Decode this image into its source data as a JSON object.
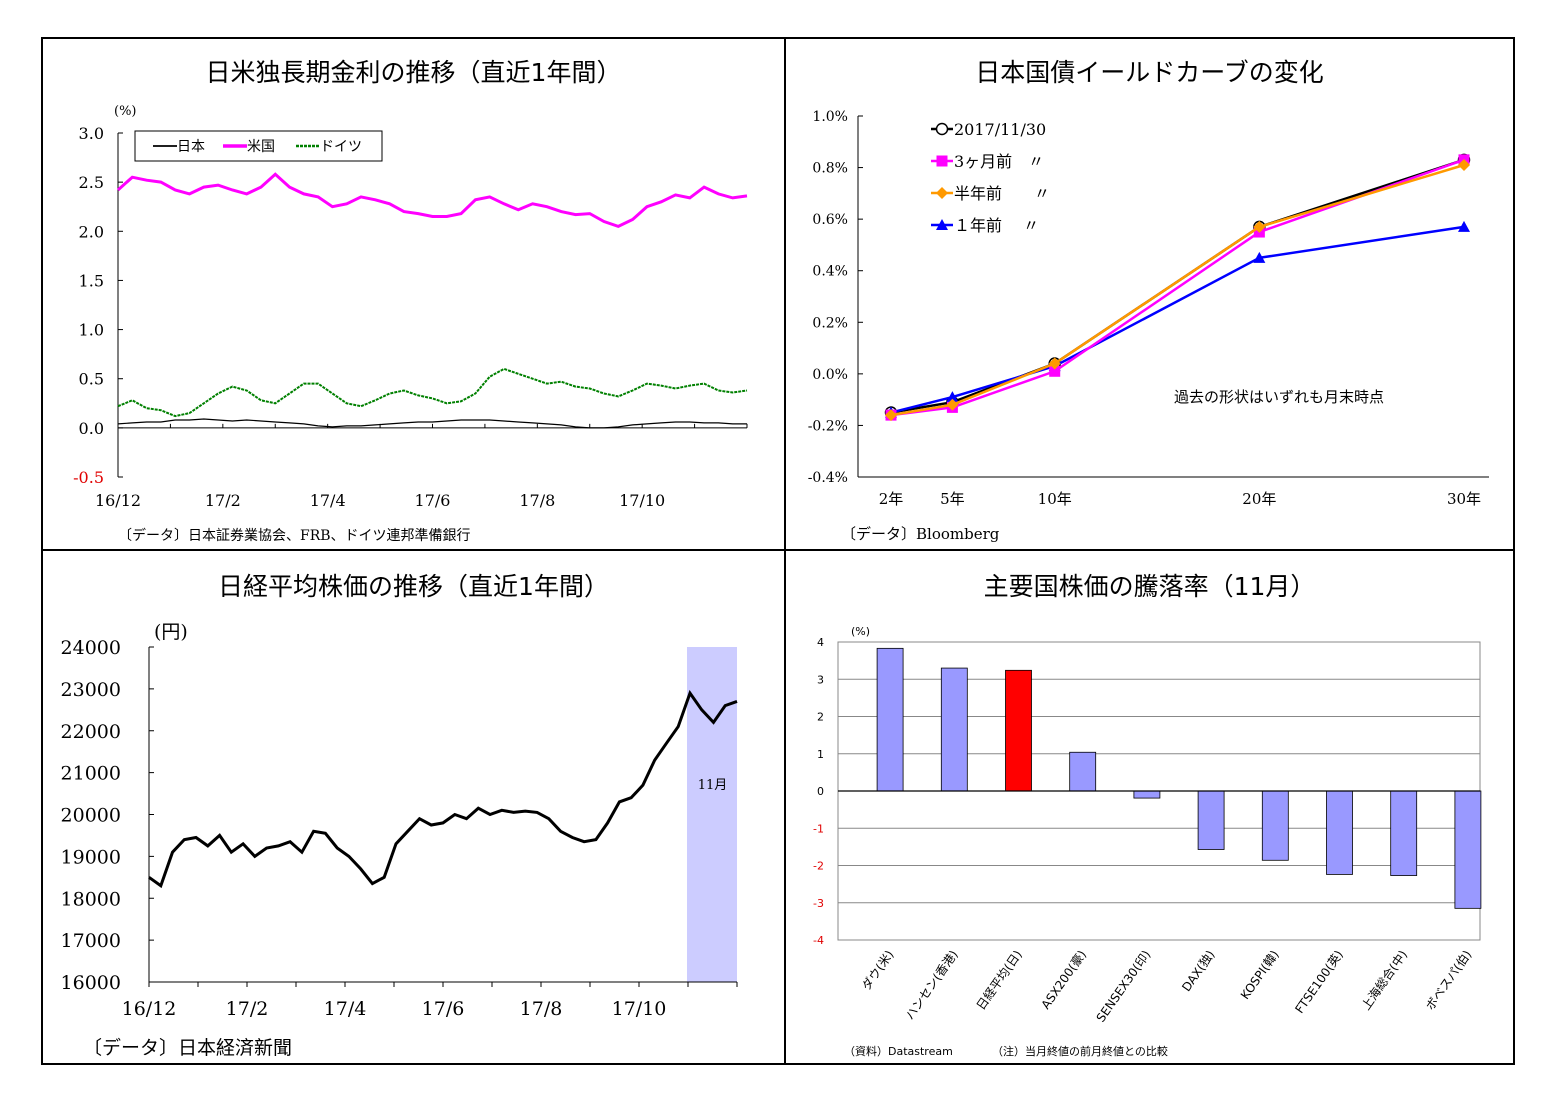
{
  "colors": {
    "japan": "#000000",
    "us": "#ff00ff",
    "germany": "#008000",
    "current": "#000000",
    "m3": "#ff00ff",
    "m6": "#ff9900",
    "y1": "#0000ff",
    "bar": "#9999ff",
    "bar_highlight": "#ff0000",
    "band": "#ccccff"
  },
  "panels": {
    "p1": {
      "title": "日米独長期金利の推移（直近1年間）",
      "source": "〔データ〕日本証券業協会、FRB、ドイツ連邦準備銀行"
    },
    "p2": {
      "title": "日本国債イールドカーブの変化",
      "source": "〔データ〕Bloomberg"
    },
    "p3": {
      "title": "日経平均株価の推移（直近1年間）",
      "source": "〔データ〕日本経済新聞"
    },
    "p4": {
      "title": "主要国株価の騰落率（11月）",
      "source": "（資料）Datastream",
      "note": "（注）当月終値の前月終値との比較"
    }
  },
  "chart_data": [
    {
      "type": "line",
      "title": "日米独長期金利の推移（直近1年間）",
      "ylabel": "(%)",
      "ylim": [
        -0.5,
        3.0
      ],
      "yticks": [
        "3.0",
        "2.5",
        "2.0",
        "1.5",
        "1.0",
        "0.5",
        "0.0",
        "-0.5"
      ],
      "xticks": [
        "16/12",
        "17/2",
        "17/4",
        "17/6",
        "17/8",
        "17/10"
      ],
      "legend_position": "top-left",
      "series": [
        {
          "name": "日本",
          "values": [
            0.04,
            0.05,
            0.06,
            0.06,
            0.08,
            0.08,
            0.09,
            0.08,
            0.07,
            0.08,
            0.07,
            0.06,
            0.05,
            0.04,
            0.02,
            0.01,
            0.02,
            0.02,
            0.03,
            0.04,
            0.05,
            0.06,
            0.06,
            0.07,
            0.08,
            0.08,
            0.08,
            0.07,
            0.06,
            0.05,
            0.04,
            0.03,
            0.01,
            0.0,
            0.0,
            0.01,
            0.03,
            0.04,
            0.05,
            0.06,
            0.06,
            0.05,
            0.05,
            0.04,
            0.04
          ]
        },
        {
          "name": "米国",
          "values": [
            2.42,
            2.55,
            2.52,
            2.5,
            2.42,
            2.38,
            2.45,
            2.47,
            2.42,
            2.38,
            2.45,
            2.58,
            2.45,
            2.38,
            2.35,
            2.25,
            2.28,
            2.35,
            2.32,
            2.28,
            2.2,
            2.18,
            2.15,
            2.15,
            2.18,
            2.32,
            2.35,
            2.28,
            2.22,
            2.28,
            2.25,
            2.2,
            2.17,
            2.18,
            2.1,
            2.05,
            2.12,
            2.25,
            2.3,
            2.37,
            2.34,
            2.45,
            2.38,
            2.34,
            2.36
          ]
        },
        {
          "name": "ドイツ",
          "values": [
            0.22,
            0.28,
            0.2,
            0.18,
            0.12,
            0.15,
            0.25,
            0.35,
            0.42,
            0.38,
            0.28,
            0.25,
            0.35,
            0.45,
            0.45,
            0.35,
            0.25,
            0.22,
            0.28,
            0.35,
            0.38,
            0.33,
            0.3,
            0.25,
            0.27,
            0.35,
            0.52,
            0.6,
            0.55,
            0.5,
            0.45,
            0.47,
            0.42,
            0.4,
            0.35,
            0.32,
            0.38,
            0.45,
            0.43,
            0.4,
            0.43,
            0.45,
            0.38,
            0.36,
            0.38
          ]
        }
      ]
    },
    {
      "type": "line",
      "title": "日本国債イールドカーブの変化",
      "ylim": [
        -0.4,
        1.0
      ],
      "yticks": [
        "1.0%",
        "0.8%",
        "0.6%",
        "0.4%",
        "0.2%",
        "0.0%",
        "-0.2%",
        "-0.4%"
      ],
      "x": [
        "2年",
        "5年",
        "10年",
        "20年",
        "30年"
      ],
      "x_years": [
        2,
        5,
        10,
        20,
        30
      ],
      "annotation": "過去の形状はいずれも月末時点",
      "legend_position": "top-left",
      "series": [
        {
          "name": "2017/11/30",
          "values": [
            -0.15,
            -0.11,
            0.04,
            0.57,
            0.83
          ]
        },
        {
          "name": "3ヶ月前　〃",
          "values": [
            -0.16,
            -0.13,
            0.01,
            0.55,
            0.83
          ]
        },
        {
          "name": "半年前　　〃",
          "values": [
            -0.16,
            -0.12,
            0.04,
            0.57,
            0.81
          ]
        },
        {
          "name": "１年前　 〃",
          "values": [
            -0.15,
            -0.09,
            0.03,
            0.45,
            0.57
          ]
        }
      ]
    },
    {
      "type": "line",
      "title": "日経平均株価の推移（直近1年間）",
      "ylabel": "(円)",
      "ylim": [
        16000,
        24000
      ],
      "yticks": [
        "24000",
        "23000",
        "22000",
        "21000",
        "20000",
        "19000",
        "18000",
        "17000",
        "16000"
      ],
      "xticks": [
        "16/12",
        "17/2",
        "17/4",
        "17/6",
        "17/8",
        "17/10"
      ],
      "shaded_period": "11月",
      "series": [
        {
          "name": "日経平均",
          "values": [
            18500,
            18300,
            19100,
            19400,
            19450,
            19250,
            19500,
            19100,
            19300,
            19000,
            19200,
            19250,
            19350,
            19100,
            19600,
            19550,
            19200,
            19000,
            18700,
            18350,
            18500,
            19300,
            19600,
            19900,
            19750,
            19800,
            20000,
            19900,
            20150,
            20000,
            20100,
            20050,
            20080,
            20050,
            19900,
            19600,
            19450,
            19350,
            19400,
            19800,
            20300,
            20400,
            20700,
            21300,
            21700,
            22100,
            22900,
            22500,
            22200,
            22600,
            22700
          ]
        }
      ]
    },
    {
      "type": "bar",
      "title": "主要国株価の騰落率（11月）",
      "ylabel": "(%)",
      "ylim": [
        -4,
        4
      ],
      "yticks": [
        "4",
        "3",
        "2",
        "1",
        "0",
        "-1",
        "-2",
        "-3",
        "-4"
      ],
      "categories": [
        "ダウ(米)",
        "ハンセン(香港)",
        "日経平均(日)",
        "ASX200(豪)",
        "SENSEX30(印)",
        "DAX(独)",
        "KOSPI(韓)",
        "FTSE100(英)",
        "上海総合(中)",
        "ボベスパ(伯)"
      ],
      "values": [
        3.83,
        3.3,
        3.24,
        1.04,
        -0.19,
        -1.57,
        -1.86,
        -2.24,
        -2.27,
        -3.15
      ],
      "highlight": "日経平均(日)"
    }
  ]
}
